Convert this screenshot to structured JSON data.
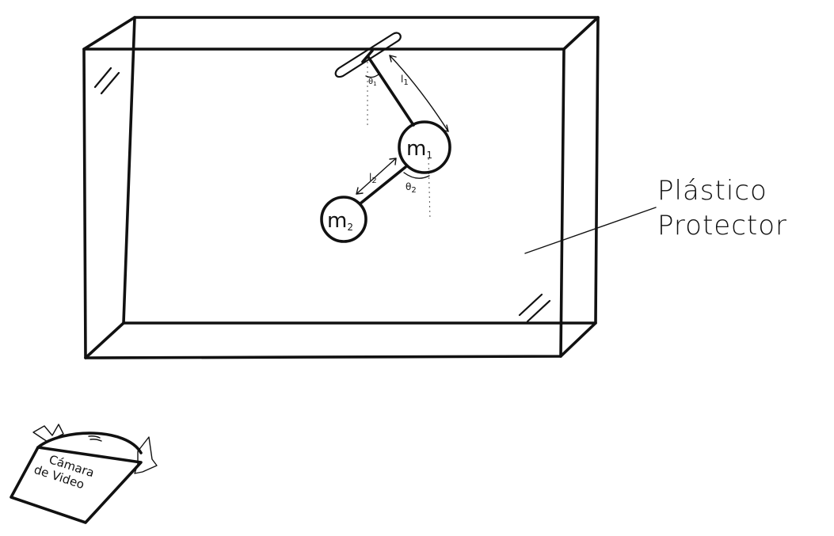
{
  "labels": {
    "mass_1": "m",
    "mass_1_sub": "1",
    "mass_2": "m",
    "mass_2_sub": "2",
    "length_1": "l",
    "length_1_sub": "1",
    "length_2": "l",
    "length_2_sub": "2",
    "angle_1": "θ",
    "angle_1_sub": "1",
    "angle_2": "θ",
    "angle_2_sub": "2",
    "protector_line1": "Plástico",
    "protector_line2": "Protector",
    "camera_line1": "Cámara",
    "camera_line2": "de Video"
  },
  "icons": {
    "glass_reflection": "glass-glare-icon",
    "camera": "video-camera-icon"
  },
  "colors": {
    "ink": "#111111",
    "guide": "#555555",
    "background": "#ffffff"
  }
}
